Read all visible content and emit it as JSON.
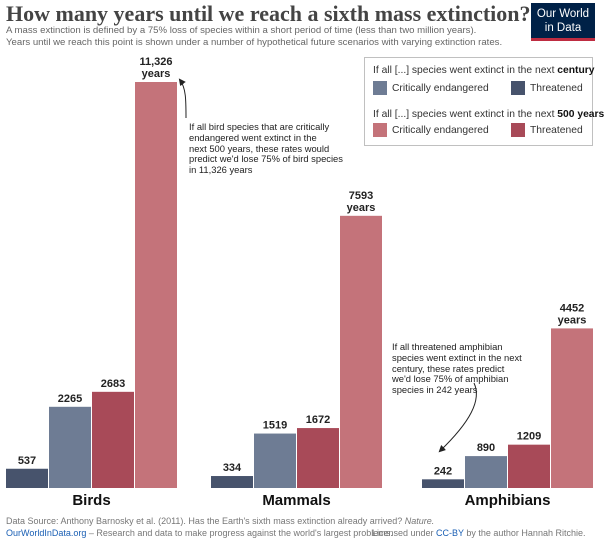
{
  "title": "How many years until we reach a sixth mass extinction?",
  "subtitle": [
    "A mass extinction is defined by a 75% loss of species within a  short period of time (less than two million years).",
    "Years until we reach this point is shown under a number of hypothetical future scenarios with varying extinction rates."
  ],
  "logo": {
    "line1": "Our World",
    "line2": "in Data"
  },
  "legend": {
    "group1_prefix": "If all [...] species went extinct in the next ",
    "group1_bold": "century",
    "group2_prefix": "If all [...] species went extinct in the next ",
    "group2_bold": "500 years",
    "items": [
      {
        "label": "Critically endangered",
        "color": "#6e7c94"
      },
      {
        "label": "Threatened",
        "color": "#47536c"
      },
      {
        "label": "Critically endangered",
        "color": "#c4737a"
      },
      {
        "label": "Threatened",
        "color": "#a84a58"
      }
    ]
  },
  "chart_data": {
    "type": "bar",
    "categories": [
      "Birds",
      "Mammals",
      "Amphibians"
    ],
    "series": [
      {
        "name": "Threatened",
        "scenario": "century",
        "color": "#47536c",
        "values": [
          537,
          334,
          242
        ]
      },
      {
        "name": "Critically endangered",
        "scenario": "century",
        "color": "#6e7c94",
        "values": [
          2265,
          1519,
          890
        ]
      },
      {
        "name": "Threatened",
        "scenario": "500 years",
        "color": "#a84a58",
        "values": [
          2683,
          1672,
          1209
        ]
      },
      {
        "name": "Critically endangered",
        "scenario": "500 years",
        "color": "#c4737a",
        "values": [
          11326,
          7593,
          4452
        ]
      }
    ],
    "value_labels": [
      [
        "537",
        "2265",
        "2683",
        "11,326|years"
      ],
      [
        "334",
        "1519",
        "1672",
        "7593|years"
      ],
      [
        "242",
        "890",
        "1209",
        "4452|years"
      ]
    ],
    "ylim": [
      0,
      11326
    ],
    "grid": false,
    "legend_position": "top-right"
  },
  "annotations": [
    {
      "name": "birds-annotation",
      "lines": [
        "If all bird species that are critically",
        "endangered went extinct in the",
        "next 500 years, these rates would",
        "predict we'd lose 75% of bird species",
        "in 11,326 years"
      ]
    },
    {
      "name": "amphibians-annotation",
      "lines": [
        "If all threatened amphibian",
        "species went extinct in the next",
        "century, these rates predict",
        "we'd lose 75% of amphibian",
        "species in 242 years"
      ]
    }
  ],
  "footer": {
    "source_prefix": "Data Source: Anthony Barnosky et al. (2011). Has the Earth's sixth mass extinction already arrived? ",
    "source_journal": "Nature.",
    "site": "OurWorldInData.org",
    "site_tagline": " – Research and data to make progress against the world's largest problems.",
    "license_prefix": "Licensed under ",
    "license": "CC-BY",
    "license_suffix": " by the author Hannah Ritchie."
  }
}
